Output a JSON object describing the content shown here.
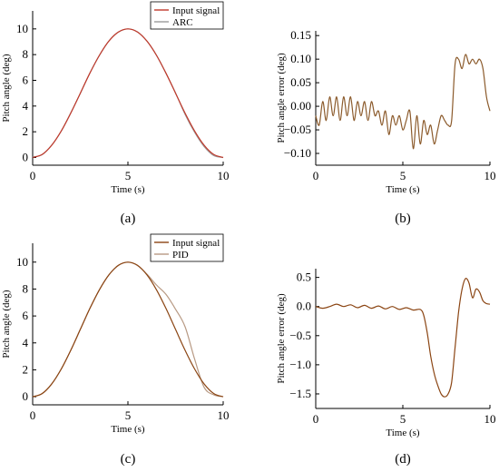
{
  "chart_data": [
    {
      "id": "a",
      "caption": "(a)",
      "type": "line",
      "xlabel": "Time (s)",
      "ylabel": "Pitch angle (deg)",
      "xlim": [
        0,
        10
      ],
      "ylim": [
        -0.6,
        11.4
      ],
      "xticks": [
        0,
        5,
        10
      ],
      "yticks": [
        0,
        2,
        4,
        6,
        8,
        10
      ],
      "ytick_labels": [
        "0",
        "2",
        "4",
        "6",
        "8",
        "10"
      ],
      "legend": "top-right",
      "series": [
        {
          "name": "Input signal",
          "color": "#c0392b",
          "x": [
            0,
            0.5,
            1,
            1.5,
            2,
            2.5,
            3,
            3.5,
            4,
            4.5,
            5,
            5.5,
            6,
            6.5,
            7,
            7.5,
            8,
            8.5,
            9,
            9.5,
            10
          ],
          "y": [
            0,
            0.24,
            0.95,
            2.06,
            3.45,
            5.0,
            6.55,
            7.94,
            9.05,
            9.76,
            10.0,
            9.76,
            9.05,
            7.94,
            6.55,
            5.0,
            3.45,
            2.06,
            0.95,
            0.24,
            0
          ]
        },
        {
          "name": "ARC",
          "color": "#9b9b9b",
          "x": [
            0,
            0.5,
            1,
            1.5,
            2,
            2.5,
            3,
            3.5,
            4,
            4.5,
            5,
            5.5,
            6,
            6.5,
            7,
            7.5,
            8,
            8.5,
            9,
            9.5,
            10
          ],
          "y": [
            0.03,
            0.22,
            0.96,
            2.05,
            3.47,
            4.98,
            6.56,
            7.93,
            9.06,
            9.75,
            10.0,
            9.77,
            9.04,
            7.95,
            6.54,
            5.02,
            3.35,
            1.96,
            0.85,
            0.15,
            0
          ]
        }
      ]
    },
    {
      "id": "b",
      "caption": "(b)",
      "type": "line",
      "xlabel": "Time (s)",
      "ylabel": "Pitch angle error (deg)",
      "xlim": [
        0,
        10
      ],
      "ylim": [
        -0.125,
        0.16
      ],
      "xticks": [
        0,
        5,
        10
      ],
      "yticks": [
        -0.1,
        -0.05,
        0,
        0.05,
        0.1,
        0.15
      ],
      "ytick_labels": [
        "−0.10",
        "−0.05",
        "0.00",
        "0.05",
        "0.10",
        "0.15"
      ],
      "legend": "none",
      "series": [
        {
          "name": "",
          "color": "#8b5a2b",
          "x": [
            0,
            0.2,
            0.4,
            0.6,
            0.8,
            1.0,
            1.2,
            1.4,
            1.6,
            1.8,
            2.0,
            2.2,
            2.4,
            2.6,
            2.8,
            3.0,
            3.2,
            3.4,
            3.6,
            3.8,
            4.0,
            4.2,
            4.4,
            4.6,
            4.8,
            5.0,
            5.2,
            5.4,
            5.6,
            5.8,
            6.0,
            6.2,
            6.4,
            6.6,
            6.8,
            7.0,
            7.2,
            7.4,
            7.6,
            7.8,
            8.0,
            8.2,
            8.4,
            8.6,
            8.8,
            9.0,
            9.2,
            9.4,
            9.6,
            9.8,
            10.0
          ],
          "y": [
            -0.02,
            -0.04,
            0.01,
            -0.03,
            0.02,
            -0.02,
            0.02,
            -0.03,
            0.02,
            -0.02,
            0.02,
            -0.03,
            0.01,
            -0.02,
            0.01,
            -0.03,
            0.01,
            -0.02,
            -0.01,
            -0.04,
            -0.01,
            -0.06,
            -0.02,
            -0.04,
            -0.02,
            -0.05,
            -0.03,
            -0.01,
            -0.09,
            -0.02,
            -0.08,
            -0.03,
            -0.06,
            -0.04,
            -0.08,
            -0.05,
            -0.02,
            -0.03,
            -0.04,
            -0.03,
            0.09,
            0.1,
            0.08,
            0.11,
            0.09,
            0.1,
            0.09,
            0.1,
            0.08,
            0.02,
            -0.01
          ]
        }
      ]
    },
    {
      "id": "c",
      "caption": "(c)",
      "type": "line",
      "xlabel": "Time (s)",
      "ylabel": "Pitch angle (deg)",
      "xlim": [
        0,
        10
      ],
      "ylim": [
        -0.6,
        11.4
      ],
      "xticks": [
        0,
        5,
        10
      ],
      "yticks": [
        0,
        2,
        4,
        6,
        8,
        10
      ],
      "ytick_labels": [
        "0",
        "2",
        "4",
        "6",
        "8",
        "10"
      ],
      "legend": "top-right",
      "series": [
        {
          "name": "Input signal",
          "color": "#8b4513",
          "x": [
            0,
            0.5,
            1,
            1.5,
            2,
            2.5,
            3,
            3.5,
            4,
            4.5,
            5,
            5.5,
            6,
            6.5,
            7,
            7.5,
            8,
            8.5,
            9,
            9.5,
            10
          ],
          "y": [
            0,
            0.24,
            0.95,
            2.06,
            3.45,
            5.0,
            6.55,
            7.94,
            9.05,
            9.76,
            10.0,
            9.76,
            9.05,
            7.94,
            6.55,
            5.0,
            3.45,
            2.06,
            0.95,
            0.24,
            0
          ]
        },
        {
          "name": "PID",
          "color": "#b89a84",
          "x": [
            0,
            0.5,
            1,
            1.5,
            2,
            2.5,
            3,
            3.5,
            4,
            4.5,
            5,
            5.5,
            6,
            6.5,
            7,
            7.5,
            8,
            8.5,
            9,
            9.5,
            10
          ],
          "y": [
            0,
            0.22,
            0.96,
            2.05,
            3.45,
            5.0,
            6.55,
            7.93,
            9.05,
            9.75,
            10.0,
            9.75,
            9.1,
            8.3,
            7.6,
            6.5,
            5.2,
            2.8,
            0.7,
            0.15,
            0
          ]
        }
      ]
    },
    {
      "id": "d",
      "caption": "(d)",
      "type": "line",
      "xlabel": "Time (s)",
      "ylabel": "Pitch angle error (deg)",
      "xlim": [
        0,
        10
      ],
      "ylim": [
        -1.75,
        0.65
      ],
      "xticks": [
        0,
        5,
        10
      ],
      "yticks": [
        -1.5,
        -1.0,
        -0.5,
        0,
        0.5
      ],
      "ytick_labels": [
        "−1.5",
        "−1.0",
        "−0.5",
        "0.0",
        "0.5"
      ],
      "legend": "none",
      "series": [
        {
          "name": "",
          "color": "#8b4513",
          "x": [
            0,
            0.4,
            0.8,
            1.2,
            1.6,
            2.0,
            2.4,
            2.8,
            3.2,
            3.6,
            4.0,
            4.4,
            4.8,
            5.2,
            5.6,
            6.0,
            6.2,
            6.4,
            6.6,
            6.8,
            7.0,
            7.2,
            7.4,
            7.6,
            7.8,
            8.0,
            8.2,
            8.4,
            8.6,
            8.8,
            9.0,
            9.2,
            9.4,
            9.6,
            9.8,
            10.0
          ],
          "y": [
            0.0,
            -0.03,
            0.0,
            0.04,
            0.0,
            0.03,
            -0.02,
            0.02,
            -0.03,
            0.01,
            -0.04,
            0.0,
            -0.05,
            -0.02,
            -0.06,
            -0.05,
            -0.15,
            -0.45,
            -0.85,
            -1.15,
            -1.35,
            -1.5,
            -1.55,
            -1.5,
            -1.3,
            -0.7,
            -0.1,
            0.3,
            0.48,
            0.4,
            0.15,
            0.3,
            0.25,
            0.1,
            0.05,
            0.04
          ]
        }
      ]
    }
  ]
}
